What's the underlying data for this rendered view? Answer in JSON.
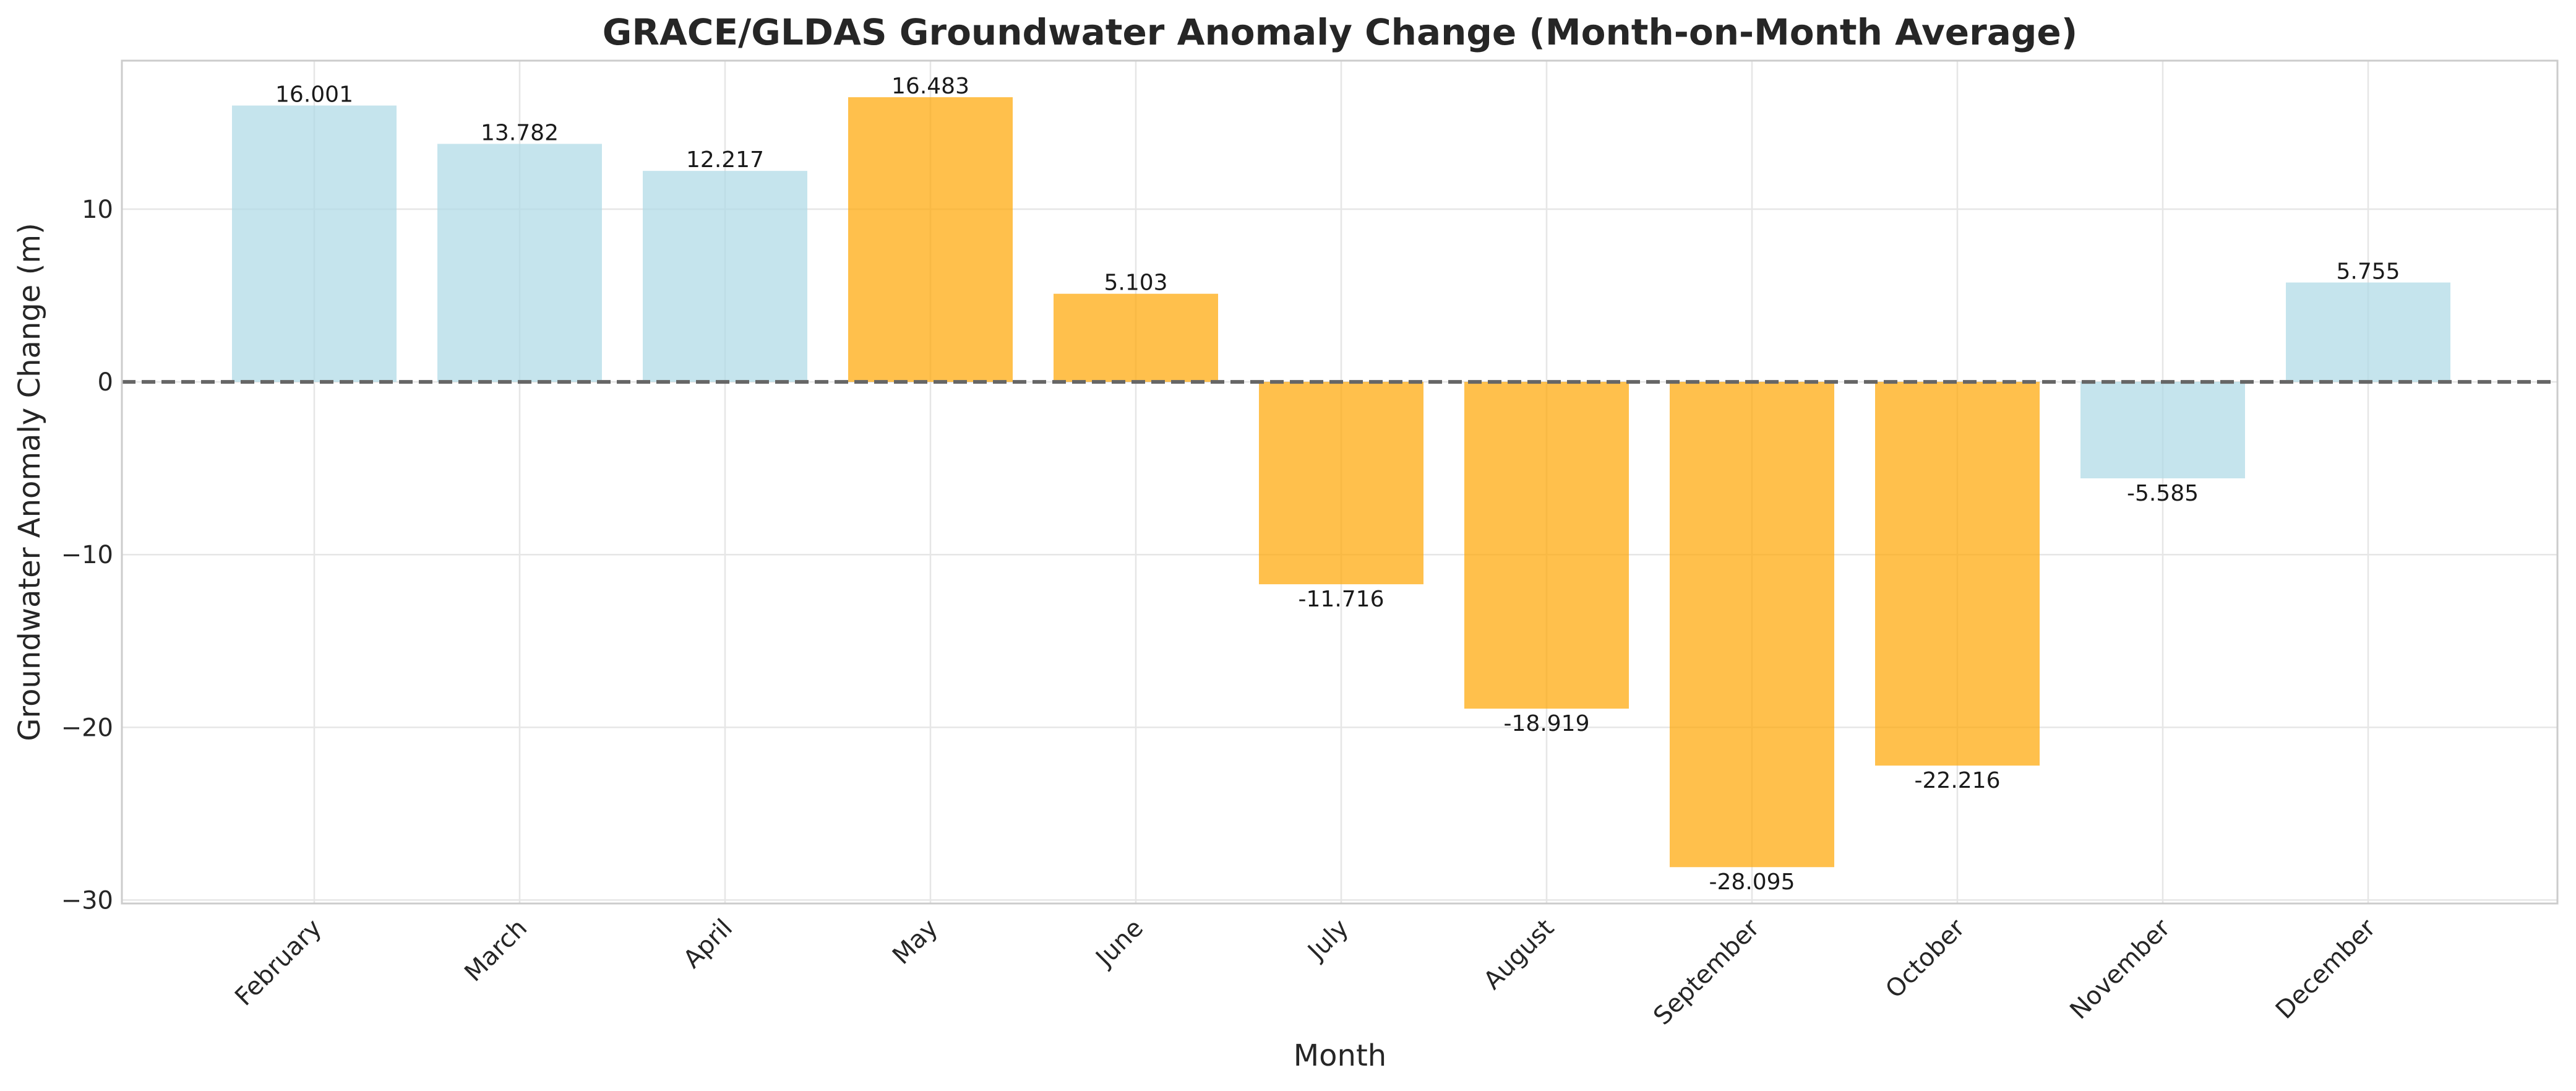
{
  "chart_data": {
    "type": "bar",
    "title": "GRACE/GLDAS Groundwater Anomaly Change (Month-on-Month Average)",
    "xlabel": "Month",
    "ylabel": "Groundwater Anomaly Change (m)",
    "categories": [
      "February",
      "March",
      "April",
      "May",
      "June",
      "July",
      "August",
      "September",
      "October",
      "November",
      "December"
    ],
    "values": [
      16.001,
      13.782,
      12.217,
      16.483,
      5.103,
      -11.716,
      -18.919,
      -28.095,
      -22.216,
      -5.585,
      5.755
    ],
    "data_labels": [
      "16.001",
      "13.782",
      "12.217",
      "16.483",
      "5.103",
      "-11.716",
      "-18.919",
      "-28.095",
      "-22.216",
      "-5.585",
      "5.755"
    ],
    "bar_colors": [
      "#add8e6",
      "#add8e6",
      "#add8e6",
      "#ffa500",
      "#ffa500",
      "#ffa500",
      "#ffa500",
      "#ffa500",
      "#ffa500",
      "#add8e6",
      "#add8e6"
    ],
    "ylim": [
      -30.2,
      18.6
    ],
    "yticks": [
      10,
      0,
      -10,
      -20,
      -30
    ],
    "ytick_labels": [
      "10",
      "0",
      "−10",
      "−20",
      "−30"
    ],
    "reference_line": {
      "y": 0,
      "style": "dashed",
      "color": "#666666"
    },
    "grid": true,
    "legend": "none"
  }
}
